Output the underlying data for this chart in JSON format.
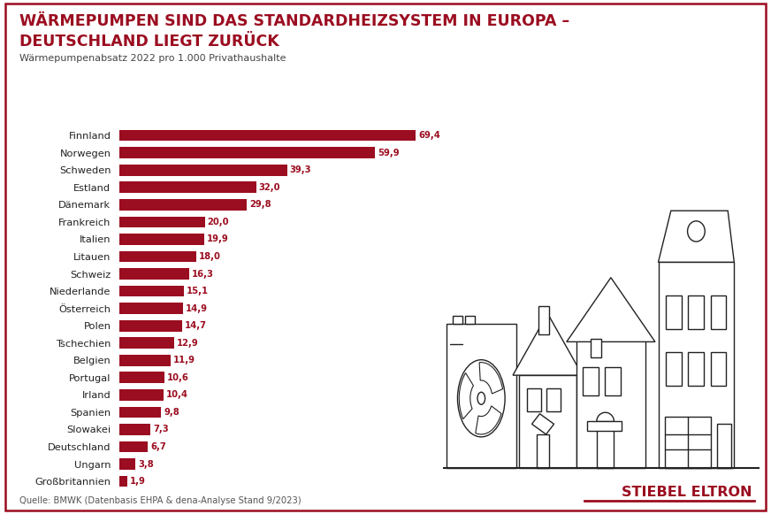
{
  "title_line1": "WÄRMEPUMPEN SIND DAS STANDARDHEIZSYSTEM IN EUROPA –",
  "title_line2": "DEUTSCHLAND LIEGT ZURÜCK",
  "subtitle": "Wärmepumpenabsatz 2022 pro 1.000 Privathaushalte",
  "source": "Quelle: BMWK (Datenbasis EHPA & dena-Analyse Stand 9/2023)",
  "brand": "STIEBEL ELTRON",
  "countries": [
    "Großbritannien",
    "Ungarn",
    "Deutschland",
    "Slowakei",
    "Spanien",
    "Irland",
    "Portugal",
    "Belgien",
    "Tschechien",
    "Polen",
    "Österreich",
    "Niederlande",
    "Schweiz",
    "Litauen",
    "Italien",
    "Frankreich",
    "Dänemark",
    "Estland",
    "Schweden",
    "Norwegen",
    "Finnland"
  ],
  "values": [
    1.9,
    3.8,
    6.7,
    7.3,
    9.8,
    10.4,
    10.6,
    11.9,
    12.9,
    14.7,
    14.9,
    15.1,
    16.3,
    18.0,
    19.9,
    20.0,
    29.8,
    32.0,
    39.3,
    59.9,
    69.4
  ],
  "bar_color": "#9b0d20",
  "bg_color": "#ffffff",
  "title_color": "#9b0d20",
  "label_color": "#9b0d20",
  "subtitle_color": "#444444",
  "source_color": "#555555",
  "brand_color": "#9b0d20",
  "border_color": "#9b0d20",
  "house_color": "#222222",
  "xlim": [
    0,
    75
  ]
}
